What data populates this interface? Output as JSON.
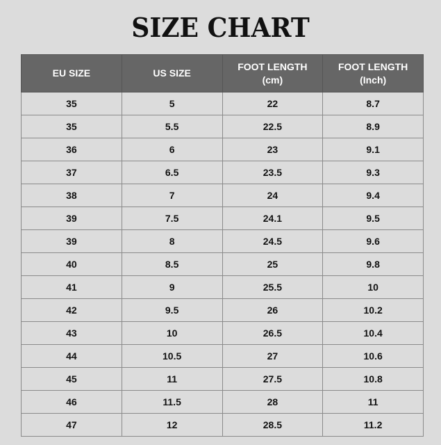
{
  "title": "SIZE CHART",
  "headers": [
    {
      "line1": "EU SIZE",
      "line2": ""
    },
    {
      "line1": "US SIZE",
      "line2": ""
    },
    {
      "line1": "FOOT LENGTH",
      "line2": "(cm)"
    },
    {
      "line1": "FOOT LENGTH",
      "line2": "(Inch)"
    }
  ],
  "rows": [
    [
      "35",
      "5",
      "22",
      "8.7"
    ],
    [
      "35",
      "5.5",
      "22.5",
      "8.9"
    ],
    [
      "36",
      "6",
      "23",
      "9.1"
    ],
    [
      "37",
      "6.5",
      "23.5",
      "9.3"
    ],
    [
      "38",
      "7",
      "24",
      "9.4"
    ],
    [
      "39",
      "7.5",
      "24.1",
      "9.5"
    ],
    [
      "39",
      "8",
      "24.5",
      "9.6"
    ],
    [
      "40",
      "8.5",
      "25",
      "9.8"
    ],
    [
      "41",
      "9",
      "25.5",
      "10"
    ],
    [
      "42",
      "9.5",
      "26",
      "10.2"
    ],
    [
      "43",
      "10",
      "26.5",
      "10.4"
    ],
    [
      "44",
      "10.5",
      "27",
      "10.6"
    ],
    [
      "45",
      "11",
      "27.5",
      "10.8"
    ],
    [
      "46",
      "11.5",
      "28",
      "11"
    ],
    [
      "47",
      "12",
      "28.5",
      "11.2"
    ]
  ],
  "colors": {
    "background": "#dcdcdc",
    "header": "#666666",
    "header_text": "#ffffff"
  }
}
